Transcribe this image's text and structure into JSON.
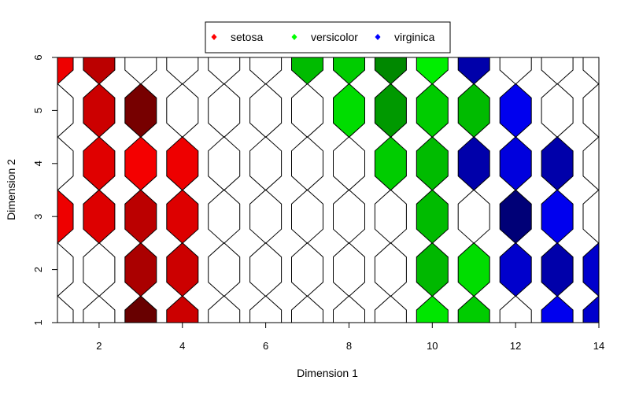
{
  "chart_data": {
    "type": "heatmap",
    "xlabel": "Dimension 1",
    "ylabel": "Dimension 2",
    "xlim": [
      1,
      14
    ],
    "ylim": [
      1,
      6
    ],
    "x_ticks": [
      2,
      4,
      6,
      8,
      10,
      12,
      14
    ],
    "y_ticks": [
      1,
      2,
      3,
      4,
      5,
      6
    ],
    "x_tick_labels": [
      "2",
      "4",
      "6",
      "8",
      "10",
      "12",
      "14"
    ],
    "y_tick_labels": [
      "1",
      "2",
      "3",
      "4",
      "5",
      "6"
    ],
    "grid": false,
    "legend": {
      "placement": "top-center",
      "entries": [
        {
          "name": "setosa",
          "color": "#ff0000"
        },
        {
          "name": "versicolor",
          "color": "#00ff00"
        },
        {
          "name": "virginica",
          "color": "#0000ff"
        }
      ]
    },
    "cell_rows_y": [
      1,
      2,
      3,
      4,
      5,
      6
    ],
    "cells": [
      {
        "x": 1,
        "y": 1,
        "fill": null
      },
      {
        "x": 2,
        "y": 1,
        "fill": null
      },
      {
        "x": 3,
        "y": 1,
        "fill": "#680000"
      },
      {
        "x": 4,
        "y": 1,
        "fill": "#cc0000"
      },
      {
        "x": 5,
        "y": 1,
        "fill": null
      },
      {
        "x": 6,
        "y": 1,
        "fill": null
      },
      {
        "x": 7,
        "y": 1,
        "fill": null
      },
      {
        "x": 8,
        "y": 1,
        "fill": null
      },
      {
        "x": 9,
        "y": 1,
        "fill": null
      },
      {
        "x": 10,
        "y": 1,
        "fill": "#00e600"
      },
      {
        "x": 11,
        "y": 1,
        "fill": "#00cc00"
      },
      {
        "x": 12,
        "y": 1,
        "fill": null
      },
      {
        "x": 13,
        "y": 1,
        "fill": "#0000ee"
      },
      {
        "x": 14,
        "y": 1,
        "fill": "#0000cc"
      },
      {
        "x": 1,
        "y": 2,
        "fill": null
      },
      {
        "x": 2,
        "y": 2,
        "fill": null
      },
      {
        "x": 3,
        "y": 2,
        "fill": "#aa0000"
      },
      {
        "x": 4,
        "y": 2,
        "fill": "#cc0000"
      },
      {
        "x": 5,
        "y": 2,
        "fill": null
      },
      {
        "x": 6,
        "y": 2,
        "fill": null
      },
      {
        "x": 7,
        "y": 2,
        "fill": null
      },
      {
        "x": 8,
        "y": 2,
        "fill": null
      },
      {
        "x": 9,
        "y": 2,
        "fill": null
      },
      {
        "x": 10,
        "y": 2,
        "fill": "#00b800"
      },
      {
        "x": 11,
        "y": 2,
        "fill": "#00dd00"
      },
      {
        "x": 12,
        "y": 2,
        "fill": "#0000cc"
      },
      {
        "x": 13,
        "y": 2,
        "fill": "#0000aa"
      },
      {
        "x": 14,
        "y": 2,
        "fill": "#0000cc"
      },
      {
        "x": 1,
        "y": 3,
        "fill": "#ee0000"
      },
      {
        "x": 2,
        "y": 3,
        "fill": "#dd0000"
      },
      {
        "x": 3,
        "y": 3,
        "fill": "#bb0000"
      },
      {
        "x": 4,
        "y": 3,
        "fill": "#dd0000"
      },
      {
        "x": 5,
        "y": 3,
        "fill": null
      },
      {
        "x": 6,
        "y": 3,
        "fill": null
      },
      {
        "x": 7,
        "y": 3,
        "fill": null
      },
      {
        "x": 8,
        "y": 3,
        "fill": null
      },
      {
        "x": 9,
        "y": 3,
        "fill": null
      },
      {
        "x": 10,
        "y": 3,
        "fill": "#00bb00"
      },
      {
        "x": 11,
        "y": 3,
        "fill": null
      },
      {
        "x": 12,
        "y": 3,
        "fill": "#000077"
      },
      {
        "x": 13,
        "y": 3,
        "fill": "#0000ee"
      },
      {
        "x": 14,
        "y": 3,
        "fill": null
      },
      {
        "x": 1,
        "y": 4,
        "fill": null
      },
      {
        "x": 2,
        "y": 4,
        "fill": "#e00000"
      },
      {
        "x": 3,
        "y": 4,
        "fill": "#f40000"
      },
      {
        "x": 4,
        "y": 4,
        "fill": "#ee0000"
      },
      {
        "x": 5,
        "y": 4,
        "fill": null
      },
      {
        "x": 6,
        "y": 4,
        "fill": null
      },
      {
        "x": 7,
        "y": 4,
        "fill": null
      },
      {
        "x": 8,
        "y": 4,
        "fill": null
      },
      {
        "x": 9,
        "y": 4,
        "fill": "#00cc00"
      },
      {
        "x": 10,
        "y": 4,
        "fill": "#00bb00"
      },
      {
        "x": 11,
        "y": 4,
        "fill": "#0000aa"
      },
      {
        "x": 12,
        "y": 4,
        "fill": "#0000dd"
      },
      {
        "x": 13,
        "y": 4,
        "fill": "#0000aa"
      },
      {
        "x": 14,
        "y": 4,
        "fill": null
      },
      {
        "x": 1,
        "y": 5,
        "fill": null
      },
      {
        "x": 2,
        "y": 5,
        "fill": "#cc0000"
      },
      {
        "x": 3,
        "y": 5,
        "fill": "#770000"
      },
      {
        "x": 4,
        "y": 5,
        "fill": null
      },
      {
        "x": 5,
        "y": 5,
        "fill": null
      },
      {
        "x": 6,
        "y": 5,
        "fill": null
      },
      {
        "x": 7,
        "y": 5,
        "fill": null
      },
      {
        "x": 8,
        "y": 5,
        "fill": "#00dd00"
      },
      {
        "x": 9,
        "y": 5,
        "fill": "#009900"
      },
      {
        "x": 10,
        "y": 5,
        "fill": "#00cc00"
      },
      {
        "x": 11,
        "y": 5,
        "fill": "#00bb00"
      },
      {
        "x": 12,
        "y": 5,
        "fill": "#0000ee"
      },
      {
        "x": 13,
        "y": 5,
        "fill": null
      },
      {
        "x": 14,
        "y": 5,
        "fill": null
      },
      {
        "x": 1,
        "y": 6,
        "fill": "#ee0000"
      },
      {
        "x": 2,
        "y": 6,
        "fill": "#bb0000"
      },
      {
        "x": 3,
        "y": 6,
        "fill": null
      },
      {
        "x": 4,
        "y": 6,
        "fill": null
      },
      {
        "x": 5,
        "y": 6,
        "fill": null
      },
      {
        "x": 6,
        "y": 6,
        "fill": null
      },
      {
        "x": 7,
        "y": 6,
        "fill": "#00bb00"
      },
      {
        "x": 8,
        "y": 6,
        "fill": "#00cc00"
      },
      {
        "x": 9,
        "y": 6,
        "fill": "#008800"
      },
      {
        "x": 10,
        "y": 6,
        "fill": "#00ee00"
      },
      {
        "x": 11,
        "y": 6,
        "fill": "#0000aa"
      },
      {
        "x": 12,
        "y": 6,
        "fill": null
      },
      {
        "x": 13,
        "y": 6,
        "fill": null
      },
      {
        "x": 14,
        "y": 6,
        "fill": null
      }
    ]
  }
}
